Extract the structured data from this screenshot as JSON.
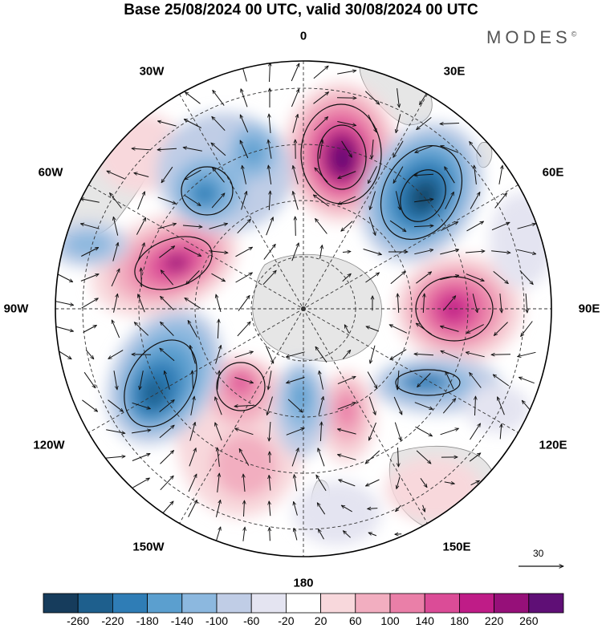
{
  "title": "Base 25/08/2024 00 UTC, valid 30/08/2024 00 UTC",
  "brand": {
    "name": "MODES",
    "mark": "©"
  },
  "longitude_labels": {
    "n0": "0",
    "n30e": "30E",
    "n60e": "60E",
    "n90e": "90E",
    "n120e": "120E",
    "n150e": "150E",
    "n180": "180",
    "n150w": "150W",
    "n120w": "120W",
    "n90w": "90W",
    "n60w": "60W",
    "n30w": "30W"
  },
  "reference_vector": {
    "label": "30",
    "icon": "arrow-right-icon"
  },
  "colorbar": {
    "ticks": [
      "-260",
      "-220",
      "-180",
      "-140",
      "-100",
      "-60",
      "-20",
      "20",
      "60",
      "100",
      "140",
      "180",
      "220",
      "260"
    ],
    "colors": [
      "#163c5c",
      "#1e5f8d",
      "#2f7db6",
      "#5b9fcf",
      "#8cb8df",
      "#c0cde6",
      "#e4e4f1",
      "#ffffff",
      "#f8d8dc",
      "#f2aec0",
      "#ea7fa8",
      "#db4c97",
      "#bf1c87",
      "#961079",
      "#5f0f76"
    ]
  }
}
